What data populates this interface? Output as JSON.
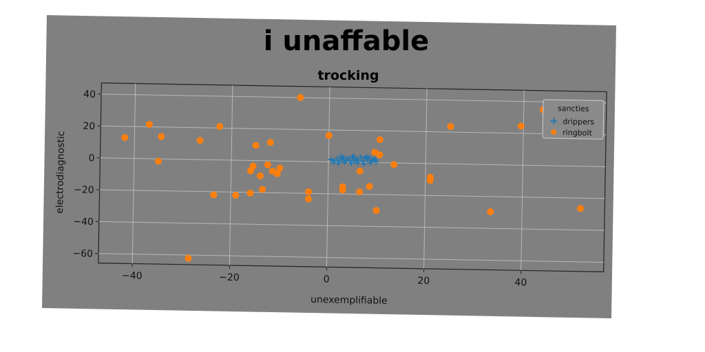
{
  "colors": {
    "figure_background": "#808080",
    "page_background": "#ffffff",
    "series_drippers": "#1f77b4",
    "series_ringbolt": "#ff7f0e"
  },
  "chart_data": {
    "type": "scatter",
    "suptitle": "i unaffable",
    "title": "trocking",
    "xlabel": "unexemplifiable",
    "ylabel": "electrodiagnostic",
    "xlim": [
      -47,
      57
    ],
    "ylim": [
      -66,
      47
    ],
    "xticks": [
      -40,
      -20,
      0,
      20,
      40
    ],
    "yticks": [
      -60,
      -40,
      -20,
      0,
      20,
      40
    ],
    "grid": true,
    "legend": {
      "title": "sancties",
      "placement": "top-right"
    },
    "series": [
      {
        "name": "drippers",
        "marker": "plus",
        "points": [
          [
            0.5,
            1.5
          ],
          [
            1.2,
            0.8
          ],
          [
            1.8,
            2.2
          ],
          [
            2.3,
            0.4
          ],
          [
            2.8,
            1.9
          ],
          [
            3.1,
            3.0
          ],
          [
            3.6,
            0.9
          ],
          [
            4.0,
            2.4
          ],
          [
            4.4,
            1.2
          ],
          [
            4.9,
            3.1
          ],
          [
            5.3,
            0.6
          ],
          [
            5.7,
            2.0
          ],
          [
            6.1,
            1.4
          ],
          [
            6.6,
            3.3
          ],
          [
            7.0,
            0.8
          ],
          [
            7.5,
            2.6
          ],
          [
            8.0,
            1.6
          ],
          [
            8.4,
            3.0
          ],
          [
            8.9,
            1.0
          ],
          [
            9.3,
            2.1
          ],
          [
            9.8,
            0.5
          ],
          [
            1.0,
            -0.4
          ],
          [
            2.0,
            -0.8
          ],
          [
            3.3,
            -0.2
          ],
          [
            4.7,
            -0.6
          ],
          [
            6.0,
            -0.3
          ],
          [
            7.3,
            -0.9
          ],
          [
            8.6,
            -0.1
          ],
          [
            9.6,
            1.8
          ],
          [
            2.6,
            3.6
          ],
          [
            5.1,
            3.9
          ],
          [
            7.8,
            3.7
          ]
        ]
      },
      {
        "name": "ringbolt",
        "marker": "circle",
        "points": [
          [
            -42,
            13
          ],
          [
            -37,
            21.5
          ],
          [
            -34.5,
            14
          ],
          [
            -35,
            -1.5
          ],
          [
            -26.5,
            12
          ],
          [
            -22.5,
            21
          ],
          [
            -23.5,
            -22
          ],
          [
            -19,
            -22
          ],
          [
            -28.5,
            -62
          ],
          [
            -16,
            -20.5
          ],
          [
            -16,
            -6.5
          ],
          [
            -15.5,
            -3.5
          ],
          [
            -15,
            9.5
          ],
          [
            -14,
            -9.5
          ],
          [
            -12.5,
            -2.5
          ],
          [
            -12,
            11.5
          ],
          [
            -13.5,
            -18
          ],
          [
            -11.5,
            -6.5
          ],
          [
            -10.5,
            -8
          ],
          [
            -10,
            -4.5
          ],
          [
            -6,
            40
          ],
          [
            -4,
            -19
          ],
          [
            -4,
            -23.5
          ],
          [
            0,
            16.5
          ],
          [
            3,
            -17.5
          ],
          [
            3,
            -15.5
          ],
          [
            6.5,
            -5.5
          ],
          [
            6.5,
            -18.5
          ],
          [
            8.5,
            -15
          ],
          [
            9.5,
            6.5
          ],
          [
            10,
            -30
          ],
          [
            10.5,
            5
          ],
          [
            10.5,
            14.5
          ],
          [
            13.5,
            -1
          ],
          [
            21,
            -10.5
          ],
          [
            21,
            -8.5
          ],
          [
            25,
            23.5
          ],
          [
            33.5,
            -29.5
          ],
          [
            39.5,
            24.5
          ],
          [
            44,
            35
          ],
          [
            52,
            -26.5
          ]
        ]
      }
    ]
  }
}
